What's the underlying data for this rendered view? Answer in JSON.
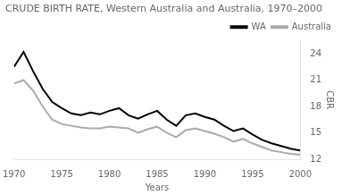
{
  "chart_data": {
    "type": "line",
    "title": "CRUDE BIRTH RATE, Western Australia and Australia, 1970–2000",
    "xlabel": "Years",
    "ylabel": "CBR",
    "x": [
      1970,
      1971,
      1972,
      1973,
      1974,
      1975,
      1976,
      1977,
      1978,
      1979,
      1980,
      1981,
      1982,
      1983,
      1984,
      1985,
      1986,
      1987,
      1988,
      1989,
      1990,
      1991,
      1992,
      1993,
      1994,
      1995,
      1996,
      1997,
      1998,
      1999,
      2000
    ],
    "series": [
      {
        "name": "WA",
        "color": "#000000",
        "values": [
          22.5,
          24.2,
          22.0,
          20.0,
          18.5,
          17.8,
          17.2,
          17.0,
          17.3,
          17.1,
          17.5,
          17.8,
          17.0,
          16.6,
          17.1,
          17.5,
          16.5,
          15.8,
          17.0,
          17.2,
          16.8,
          16.5,
          15.8,
          15.2,
          15.5,
          14.8,
          14.2,
          13.8,
          13.5,
          13.2,
          13.0
        ]
      },
      {
        "name": "Australia",
        "color": "#aaaaaa",
        "values": [
          20.6,
          21.0,
          19.8,
          18.0,
          16.5,
          16.0,
          15.8,
          15.6,
          15.5,
          15.5,
          15.7,
          15.6,
          15.5,
          15.0,
          15.4,
          15.7,
          15.0,
          14.5,
          15.3,
          15.5,
          15.2,
          14.9,
          14.5,
          14.0,
          14.3,
          13.8,
          13.4,
          13.0,
          12.8,
          12.6,
          12.5
        ]
      }
    ],
    "xlim": [
      1970,
      2000
    ],
    "xticks": [
      1970,
      1975,
      1980,
      1985,
      1990,
      1995,
      2000
    ],
    "ylim": [
      12,
      25.5
    ],
    "yticks": [
      12,
      15,
      18,
      21,
      24
    ],
    "grid": false,
    "legend": "upper right"
  }
}
